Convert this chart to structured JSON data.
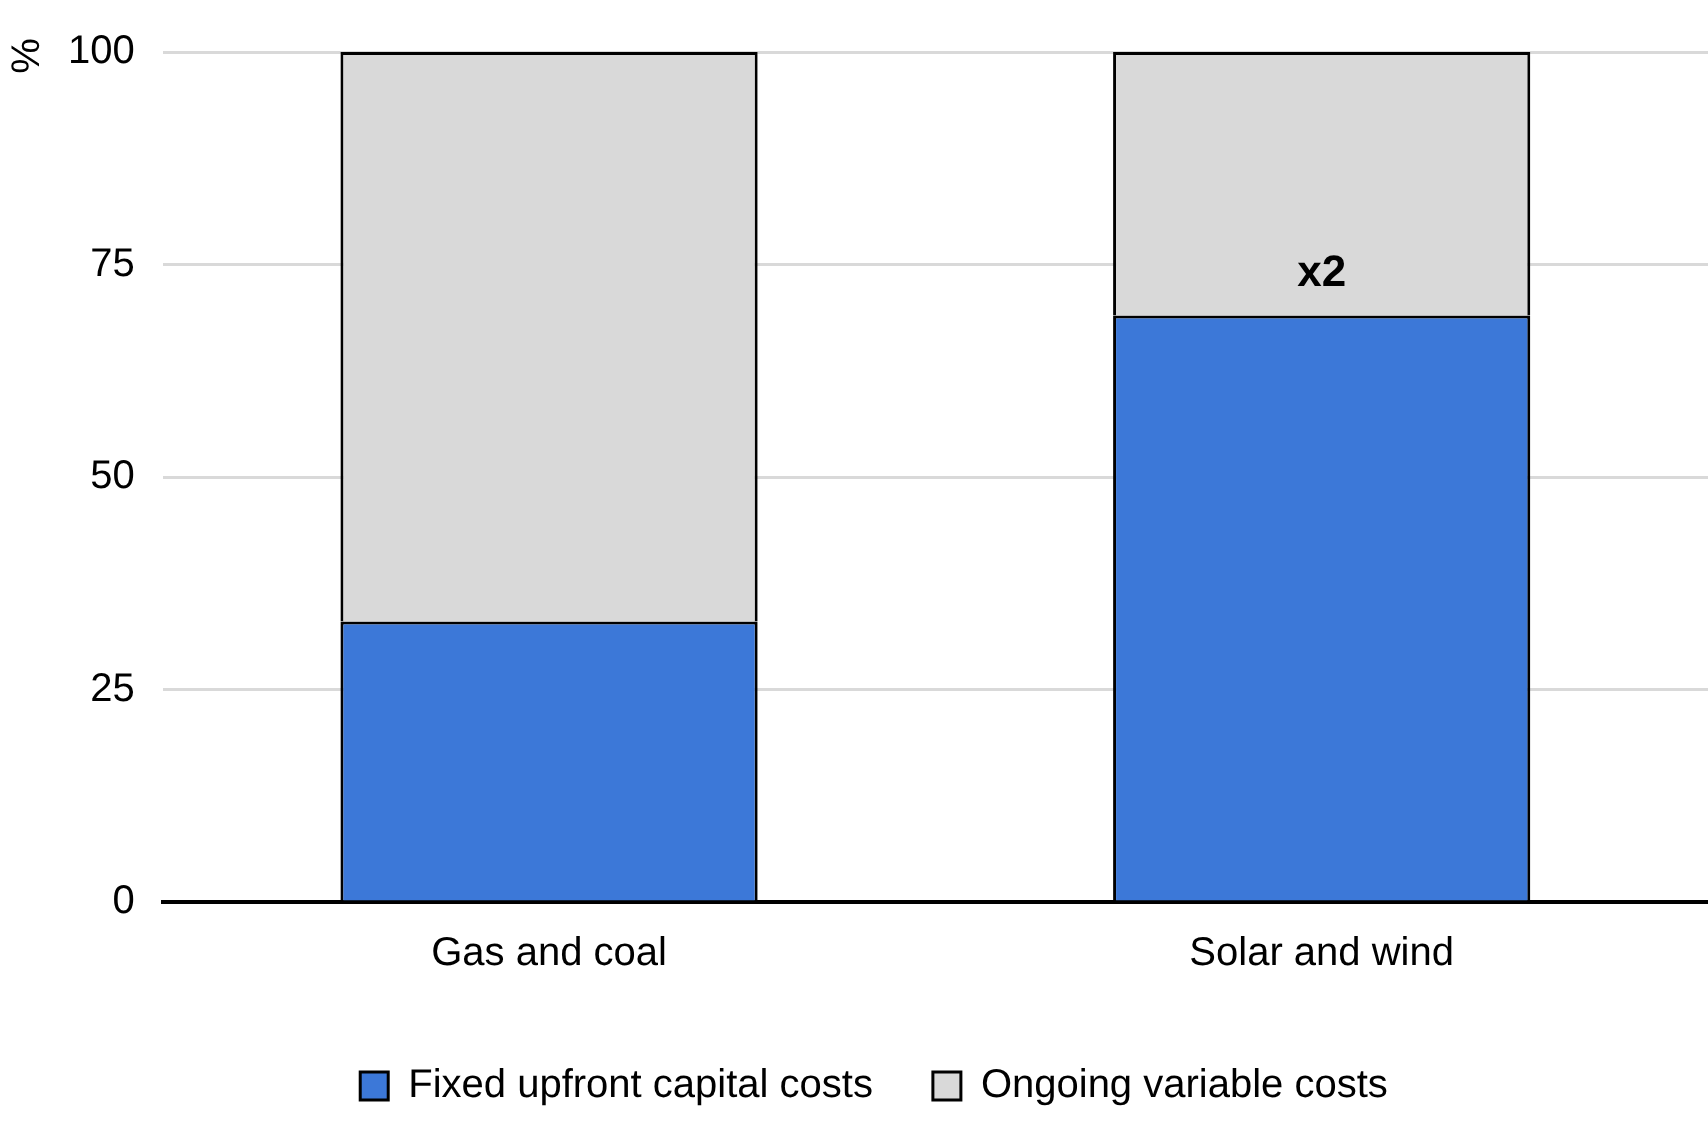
{
  "chart_data": {
    "type": "bar",
    "stacked": true,
    "ylabel": "%",
    "categories": [
      "Gas and coal",
      "Solar and wind"
    ],
    "series": [
      {
        "name": "Fixed upfront capital costs",
        "color": "#3c78d8",
        "values": [
          33,
          69
        ]
      },
      {
        "name": "Ongoing variable costs",
        "color": "#d9d9d9",
        "values": [
          67,
          31
        ]
      }
    ],
    "ylim": [
      0,
      100
    ],
    "yticks": [
      0,
      25,
      50,
      75,
      100
    ],
    "grid": "y",
    "legend": "bottom",
    "annotations": [
      {
        "text": "x2",
        "x": "Solar and wind",
        "y": 69
      }
    ]
  }
}
